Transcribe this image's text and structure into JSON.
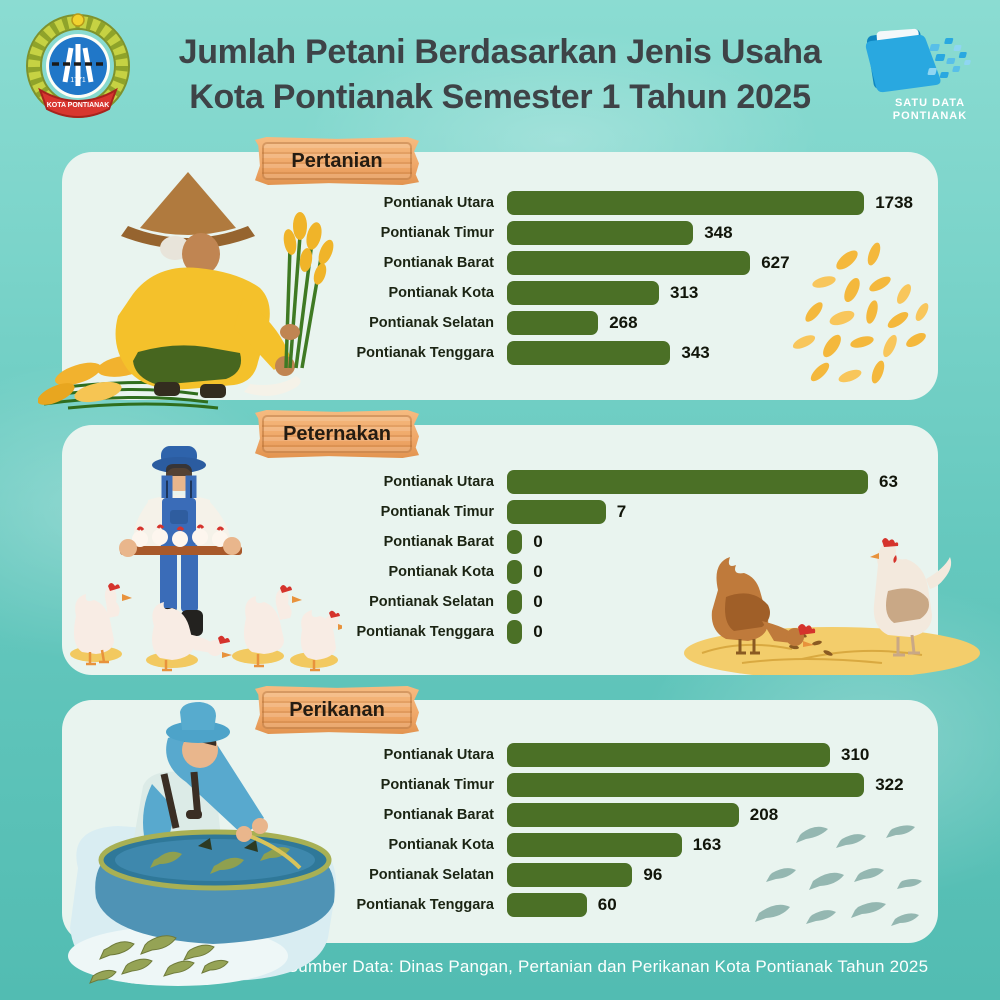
{
  "header": {
    "title_line1": "Jumlah Petani Berdasarkan Jenis Usaha",
    "title_line2": "Kota Pontianak Semester 1 Tahun 2025",
    "city_logo_text": "KOTA PONTIANAK",
    "city_logo_year": "1771",
    "satu_data_line1": "SATU DATA",
    "satu_data_line2": "PONTIANAK"
  },
  "footer": {
    "source": "Sumber Data: Dinas Pangan, Pertanian dan Perikanan Kota Pontianak Tahun 2025"
  },
  "colors": {
    "bar_green": "#4b7026",
    "card_bg": "#e9f4ef",
    "background_teal": "#65c8be",
    "sign_wood": "#efa768",
    "title_text": "#3e4347",
    "accent_blue": "#1b9cd8"
  },
  "chart_data": [
    {
      "type": "bar",
      "title": "Pertanian",
      "orientation": "horizontal",
      "categories": [
        "Pontianak Utara",
        "Pontianak Timur",
        "Pontianak Barat",
        "Pontianak Kota",
        "Pontianak Selatan",
        "Pontianak Tenggara"
      ],
      "values": [
        1738,
        348,
        627,
        313,
        268,
        343
      ],
      "bar_pct": [
        94,
        49,
        64,
        40,
        24,
        43
      ],
      "bar_color": "#4b7026",
      "value_labels_shown": true
    },
    {
      "type": "bar",
      "title": "Peternakan",
      "orientation": "horizontal",
      "categories": [
        "Pontianak Utara",
        "Pontianak Timur",
        "Pontianak Barat",
        "Pontianak Kota",
        "Pontianak Selatan",
        "Pontianak Tenggara"
      ],
      "values": [
        63,
        7,
        0,
        0,
        0,
        0
      ],
      "bar_pct": [
        95,
        26,
        4,
        4,
        4,
        4
      ],
      "bar_color": "#4b7026",
      "value_labels_shown": true
    },
    {
      "type": "bar",
      "title": "Perikanan",
      "orientation": "horizontal",
      "categories": [
        "Pontianak Utara",
        "Pontianak Timur",
        "Pontianak Barat",
        "Pontianak Kota",
        "Pontianak Selatan",
        "Pontianak Tenggara"
      ],
      "values": [
        310,
        322,
        208,
        163,
        96,
        60
      ],
      "bar_pct": [
        85,
        94,
        61,
        46,
        33,
        21
      ],
      "bar_color": "#4b7026",
      "value_labels_shown": true
    }
  ]
}
